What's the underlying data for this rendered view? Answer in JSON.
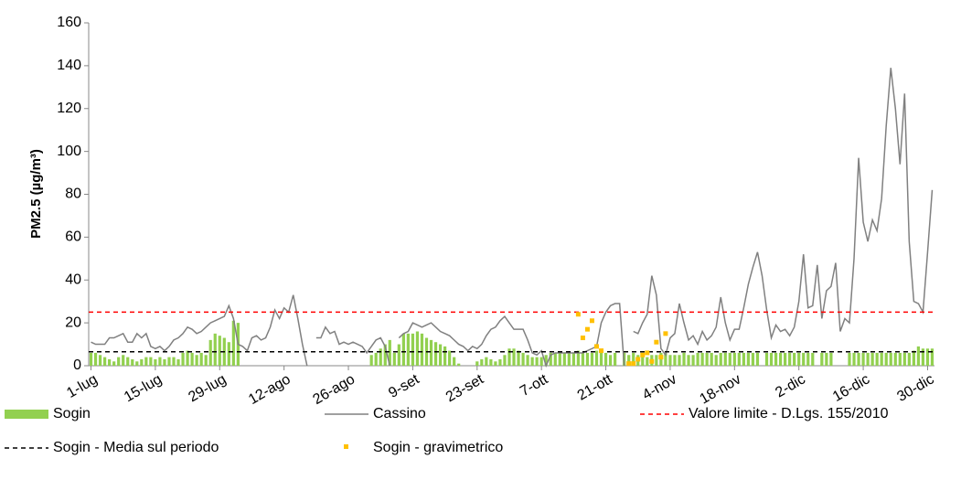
{
  "chart_data": {
    "type": "combo",
    "y_label": "PM2.5 (µg/m³)",
    "ylim": [
      0,
      160
    ],
    "yticks": [
      0,
      20,
      40,
      60,
      80,
      100,
      120,
      140,
      160
    ],
    "grid": false,
    "categories": [
      "1-lug",
      null,
      null,
      null,
      null,
      null,
      null,
      null,
      null,
      null,
      null,
      null,
      null,
      null,
      "15-lug",
      null,
      null,
      null,
      null,
      null,
      null,
      null,
      null,
      null,
      null,
      null,
      null,
      null,
      "29-lug",
      null,
      null,
      null,
      null,
      null,
      null,
      null,
      null,
      null,
      null,
      null,
      null,
      null,
      "12-ago",
      null,
      null,
      null,
      null,
      null,
      null,
      null,
      null,
      null,
      null,
      null,
      null,
      null,
      "26-ago",
      null,
      null,
      null,
      null,
      null,
      null,
      null,
      null,
      null,
      null,
      null,
      null,
      null,
      "9-set",
      null,
      null,
      null,
      null,
      null,
      null,
      null,
      null,
      null,
      null,
      null,
      null,
      null,
      "23-set",
      null,
      null,
      null,
      null,
      null,
      null,
      null,
      null,
      null,
      null,
      null,
      null,
      null,
      "7-ott",
      null,
      null,
      null,
      null,
      null,
      null,
      null,
      null,
      null,
      null,
      null,
      null,
      null,
      "21-ott",
      null,
      null,
      null,
      null,
      null,
      null,
      null,
      null,
      null,
      null,
      null,
      null,
      null,
      "4-nov",
      null,
      null,
      null,
      null,
      null,
      null,
      null,
      null,
      null,
      null,
      null,
      null,
      null,
      "18-nov",
      null,
      null,
      null,
      null,
      null,
      null,
      null,
      null,
      null,
      null,
      null,
      null,
      null,
      "2-dic",
      null,
      null,
      null,
      null,
      null,
      null,
      null,
      null,
      null,
      null,
      null,
      null,
      null,
      "16-dic",
      null,
      null,
      null,
      null,
      null,
      null,
      null,
      null,
      null,
      null,
      null,
      null,
      null,
      "30-dic",
      null
    ],
    "series": [
      {
        "name": "Sogin",
        "type": "bar",
        "color": "#92d050",
        "values": [
          6,
          6,
          5,
          4,
          3,
          2,
          4,
          5,
          4,
          3,
          2,
          3,
          4,
          4,
          3,
          4,
          3,
          4,
          4,
          3,
          6,
          7,
          6,
          5,
          6,
          5,
          12,
          15,
          14,
          13,
          11,
          21,
          20,
          null,
          null,
          null,
          null,
          null,
          null,
          null,
          null,
          null,
          null,
          null,
          null,
          null,
          null,
          null,
          null,
          null,
          null,
          null,
          null,
          null,
          null,
          null,
          null,
          null,
          null,
          null,
          null,
          5,
          6,
          8,
          10,
          12,
          6,
          10,
          15,
          15,
          15,
          16,
          15,
          13,
          12,
          11,
          10,
          9,
          7,
          4,
          1,
          null,
          null,
          null,
          2,
          3,
          4,
          3,
          2,
          3,
          5,
          8,
          8,
          7,
          6,
          5,
          4,
          4,
          4,
          5,
          6,
          6,
          6,
          6,
          6,
          6,
          7,
          6,
          6,
          6,
          7,
          6,
          6,
          5,
          6,
          null,
          6,
          5,
          6,
          5,
          6,
          4,
          5,
          5,
          6,
          6,
          5,
          5,
          5,
          6,
          5,
          5,
          6,
          6,
          6,
          6,
          5,
          6,
          6,
          6,
          6,
          6,
          6,
          6,
          6,
          6,
          null,
          6,
          6,
          6,
          6,
          6,
          6,
          6,
          6,
          6,
          6,
          6,
          null,
          6,
          6,
          6,
          null,
          null,
          null,
          6,
          6,
          6,
          6,
          6,
          6,
          6,
          6,
          6,
          6,
          6,
          6,
          6,
          6,
          7,
          9,
          8,
          8,
          8
        ]
      },
      {
        "name": "Cassino",
        "type": "line",
        "color": "#808080",
        "values": [
          11,
          10,
          10,
          10,
          13,
          13,
          14,
          15,
          11,
          11,
          15,
          13,
          15,
          9,
          8,
          9,
          7,
          9,
          12,
          13,
          15,
          18,
          17,
          15,
          16,
          18,
          20,
          21,
          22,
          23,
          28,
          22,
          10,
          9,
          7,
          13,
          14,
          12,
          13,
          18,
          26,
          22,
          27,
          25,
          33,
          22,
          10,
          0,
          null,
          13,
          13,
          18,
          15,
          16,
          10,
          11,
          10,
          11,
          10,
          9,
          6,
          9,
          12,
          13,
          9,
          0,
          null,
          13,
          15,
          16,
          20,
          19,
          18,
          19,
          20,
          18,
          16,
          15,
          14,
          12,
          10,
          9,
          7,
          9,
          8,
          10,
          14,
          17,
          18,
          21,
          23,
          20,
          17,
          17,
          17,
          12,
          6,
          5,
          7,
          0,
          5,
          6,
          6,
          6,
          6,
          6,
          6,
          6,
          7,
          8,
          9,
          20,
          25,
          28,
          29,
          29,
          0,
          null,
          16,
          15,
          20,
          24,
          42,
          33,
          8,
          5,
          13,
          15,
          29,
          20,
          12,
          14,
          10,
          16,
          12,
          14,
          18,
          32,
          20,
          12,
          17,
          17,
          27,
          38,
          46,
          53,
          42,
          26,
          13,
          19,
          16,
          17,
          14,
          18,
          30,
          52,
          27,
          28,
          47,
          22,
          35,
          37,
          48,
          16,
          22,
          20,
          50,
          97,
          67,
          58,
          68,
          63,
          78,
          112,
          139,
          120,
          94,
          127,
          58,
          30,
          29,
          25,
          53,
          82
        ]
      },
      {
        "name": "Valore limite -  D.Lgs. 155/2010",
        "type": "hline",
        "color": "#ff0000",
        "value": 25
      },
      {
        "name": "Sogin - Media sul periodo",
        "type": "hline",
        "color": "#000000",
        "value": 6.5
      },
      {
        "name": "Sogin - gravimetrico",
        "type": "point",
        "color": "#ffc000",
        "values": [
          null,
          null,
          null,
          null,
          null,
          null,
          null,
          null,
          null,
          null,
          null,
          null,
          null,
          null,
          null,
          null,
          null,
          null,
          null,
          null,
          null,
          null,
          null,
          null,
          null,
          null,
          null,
          null,
          null,
          null,
          null,
          null,
          null,
          null,
          null,
          null,
          null,
          null,
          null,
          null,
          null,
          null,
          null,
          null,
          null,
          null,
          null,
          null,
          null,
          null,
          null,
          null,
          null,
          null,
          null,
          null,
          null,
          null,
          null,
          null,
          null,
          null,
          null,
          null,
          null,
          null,
          null,
          null,
          null,
          null,
          null,
          null,
          null,
          null,
          null,
          null,
          null,
          null,
          null,
          null,
          null,
          null,
          null,
          null,
          null,
          null,
          null,
          null,
          null,
          null,
          null,
          null,
          null,
          null,
          null,
          null,
          null,
          null,
          null,
          null,
          null,
          null,
          null,
          null,
          null,
          null,
          24,
          13,
          17,
          21,
          9,
          7,
          null,
          null,
          null,
          null,
          null,
          1,
          1,
          3,
          5,
          6,
          2,
          11,
          4,
          15,
          null,
          null,
          null,
          null,
          null,
          null,
          null,
          null,
          null,
          null,
          null,
          null,
          null,
          null,
          null,
          null,
          null,
          null,
          null,
          null,
          null,
          null,
          null,
          null,
          null,
          null,
          null,
          null,
          null,
          null,
          null,
          null,
          null,
          null,
          null,
          null,
          null,
          null,
          null,
          null,
          null,
          null,
          null,
          null,
          null,
          null,
          null,
          null,
          null,
          null,
          null,
          null,
          null,
          null,
          null,
          null,
          null,
          null
        ]
      }
    ]
  }
}
